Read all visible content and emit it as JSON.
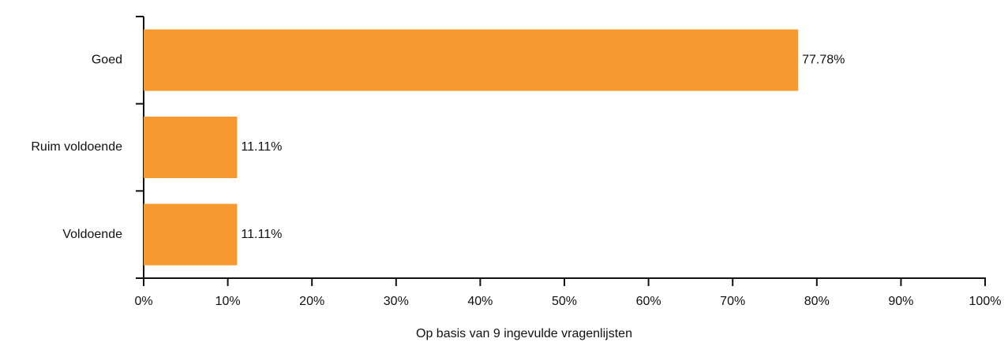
{
  "chart_data": {
    "type": "bar",
    "orientation": "horizontal",
    "categories": [
      "Goed",
      "Ruim voldoende",
      "Voldoende"
    ],
    "values": [
      77.78,
      11.11,
      11.11
    ],
    "value_labels": [
      "77.78%",
      "11.11%",
      "11.11%"
    ],
    "color": "#f7992e",
    "x_label": "Op basis van 9 ingevulde vragenlijsten",
    "xlim": [
      0,
      100
    ],
    "xticks": [
      {
        "value": 0,
        "label": "0%"
      },
      {
        "value": 10,
        "label": "10%"
      },
      {
        "value": 20,
        "label": "20%"
      },
      {
        "value": 30,
        "label": "30%"
      },
      {
        "value": 40,
        "label": "40%"
      },
      {
        "value": 50,
        "label": "50%"
      },
      {
        "value": 60,
        "label": "60%"
      },
      {
        "value": 70,
        "label": "70%"
      },
      {
        "value": 80,
        "label": "80%"
      },
      {
        "value": 90,
        "label": "90%"
      },
      {
        "value": 100,
        "label": "100%"
      }
    ],
    "grid": false
  }
}
